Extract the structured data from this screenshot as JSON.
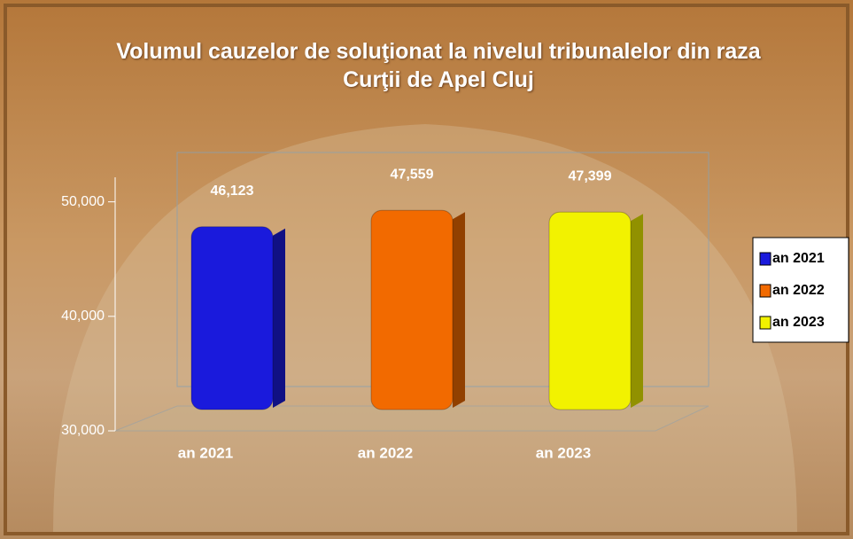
{
  "chart_data": {
    "type": "bar",
    "title": "Volumul cauzelor de soluţionat la nivelul tribunalelor din raza Curţii de Apel Cluj",
    "categories": [
      "an 2021",
      "an 2022",
      "an 2023"
    ],
    "series": [
      {
        "name": "an 2021",
        "color": "#1a1adc",
        "values": [
          46123,
          null,
          null
        ],
        "value_labels": [
          "46,123",
          null,
          null
        ]
      },
      {
        "name": "an 2022",
        "color": "#f26a00",
        "values": [
          null,
          47559,
          null
        ],
        "value_labels": [
          null,
          "47,559",
          null
        ]
      },
      {
        "name": "an 2023",
        "color": "#f2f200",
        "values": [
          null,
          null,
          47399
        ],
        "value_labels": [
          null,
          null,
          "47,399"
        ]
      }
    ],
    "ylim": [
      30000,
      54000
    ],
    "yticks": [
      {
        "value": 30000,
        "label": "30,000"
      },
      {
        "value": 40000,
        "label": "40,000"
      },
      {
        "value": 50000,
        "label": "50,000"
      }
    ],
    "legend": "right"
  }
}
